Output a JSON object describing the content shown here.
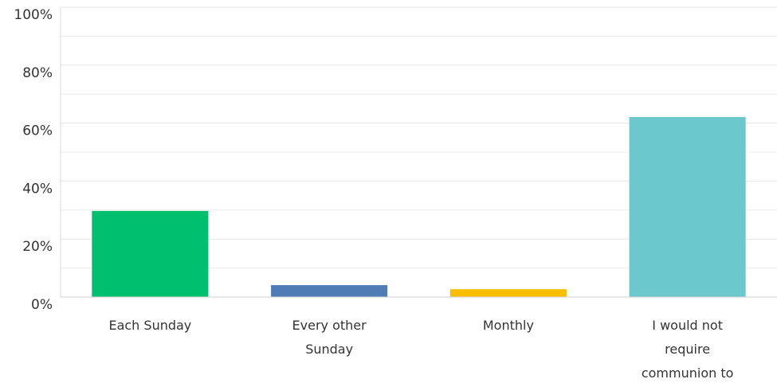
{
  "chart_data": {
    "type": "bar",
    "categories": [
      "Each Sunday",
      "Every other Sunday",
      "Monthly",
      "I would not require communion to"
    ],
    "values": [
      29.7,
      4.1,
      2.7,
      62.1
    ],
    "colors": [
      "#00bf6f",
      "#507cb6",
      "#f9be00",
      "#6bc8cd"
    ],
    "ylim": [
      0,
      100
    ],
    "yticks": [
      {
        "value": 0,
        "label": "0%"
      },
      {
        "value": 20,
        "label": "20%"
      },
      {
        "value": 40,
        "label": "40%"
      },
      {
        "value": 60,
        "label": "60%"
      },
      {
        "value": 80,
        "label": "80%"
      },
      {
        "value": 100,
        "label": "100%"
      }
    ],
    "minor_yticks": [
      10,
      30,
      50,
      70,
      90
    ],
    "grid": true
  }
}
